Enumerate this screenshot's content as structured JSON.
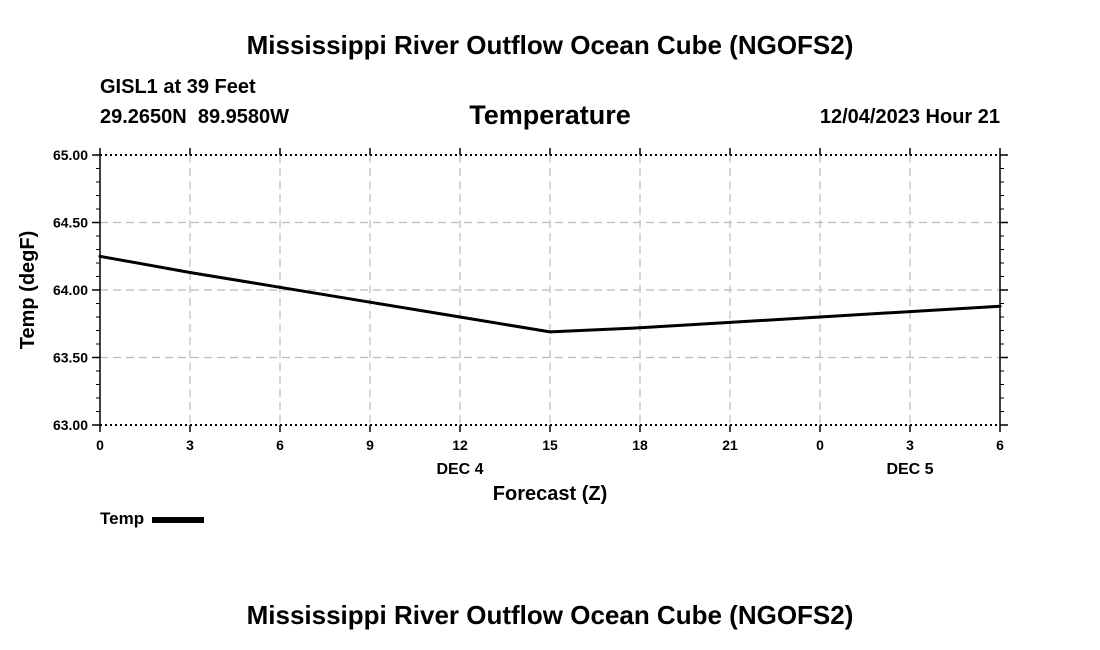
{
  "header": {
    "title": "Mississippi River Outflow Ocean Cube (NGOFS2)",
    "station": "GISL1 at 39 Feet",
    "coordinates": "29.2650N  89.9580W",
    "variable": "Temperature",
    "datetime": "12/04/2023 Hour 21"
  },
  "footer": {
    "title": "Mississippi River Outflow Ocean Cube (NGOFS2)"
  },
  "legend": {
    "label": "Temp"
  },
  "chart_data": {
    "type": "line",
    "title": "Temperature",
    "xlabel": "Forecast (Z)",
    "ylabel": "Temp (degF)",
    "x": [
      0,
      3,
      6,
      9,
      12,
      15,
      18,
      21,
      24,
      27,
      30
    ],
    "x_tick_labels": [
      "0",
      "3",
      "6",
      "9",
      "12",
      "15",
      "18",
      "21",
      "0",
      "3",
      "6"
    ],
    "x_date_labels": [
      {
        "x": 12,
        "label": "DEC 4"
      },
      {
        "x": 27,
        "label": "DEC 5"
      }
    ],
    "xlim": [
      0,
      30
    ],
    "ylim": [
      63.0,
      65.0
    ],
    "y_ticks": [
      63.0,
      63.5,
      64.0,
      64.5,
      65.0
    ],
    "y_tick_labels": [
      "63.00",
      "63.50",
      "64.00",
      "64.50",
      "65.00"
    ],
    "grid": true,
    "line_color": "#000000",
    "grid_color": "#bbbbbb",
    "series": [
      {
        "name": "Temp",
        "x": [
          0,
          3,
          6,
          9,
          12,
          15,
          18,
          21,
          24,
          27,
          30
        ],
        "values": [
          64.25,
          64.13,
          64.02,
          63.91,
          63.8,
          63.69,
          63.72,
          63.76,
          63.8,
          63.84,
          63.88
        ]
      }
    ]
  }
}
